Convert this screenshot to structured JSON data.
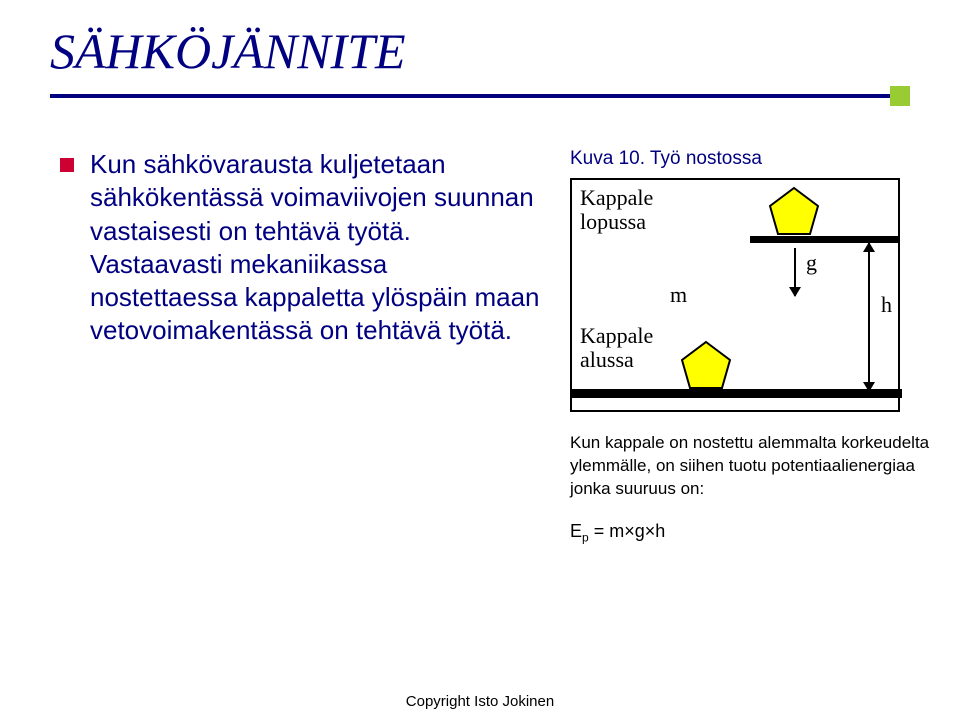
{
  "title": {
    "text": "SÄHKÖJÄNNITE",
    "color": "#000080",
    "underline_color": "#000080",
    "accent_color": "#99cc33"
  },
  "bullet": {
    "color": "#cc0033",
    "body_text": "Kun sähkövarausta kuljetetaan sähkökentässä voimaviivojen suunnan vastaisesti on tehtävä työtä. Vastaavasti mekaniikassa nostettaessa kappaletta ylöspäin maan vetovoimakentässä on tehtävä työtä.",
    "body_color": "#000080"
  },
  "figure": {
    "caption": "Kuva 10. Työ nostossa",
    "caption_color": "#000080",
    "labels": {
      "top": "Kappale lopussa",
      "bottom": "Kappale alussa",
      "m": "m",
      "g": "g",
      "h": "h"
    },
    "pentagon_fill": "#ffff00",
    "pentagon_stroke": "#000000",
    "border_color": "#000000",
    "below_text": "Kun kappale on nostettu alemmalta korkeudelta ylemmälle, on siihen tuotu potentiaalienergiaa jonka suuruus on:",
    "formula_prefix": "E",
    "formula_sub": "p",
    "formula_rest": " = m×g×h"
  },
  "footer": {
    "text": "Copyright Isto Jokinen"
  }
}
